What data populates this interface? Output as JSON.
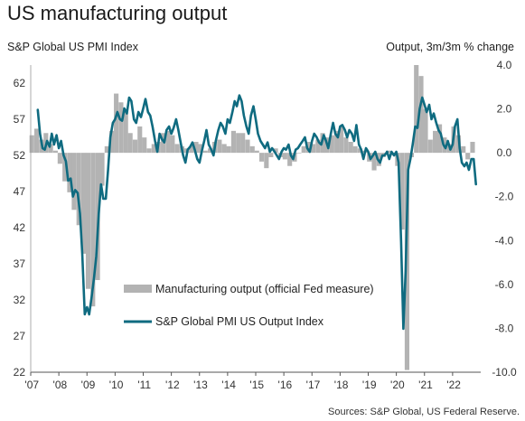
{
  "title": "US manufacturing output",
  "source": "Sources: S&P Global, US Federal Reserve.",
  "chart_data": {
    "type": "bar+line",
    "left_axis_label": "S&P Global US PMI Index",
    "right_axis_label": "Output, 3m/3m % change",
    "left_ylim": [
      22,
      64.5
    ],
    "left_ticks": [
      22,
      27,
      32,
      37,
      42,
      47,
      52,
      57,
      62
    ],
    "right_ylim": [
      -10,
      4
    ],
    "right_ticks": [
      "4.0",
      "2.0",
      "0.0",
      "-2.0",
      "-4.0",
      "-6.0",
      "-8.0",
      "-10.0"
    ],
    "x_ticks": [
      "'07",
      "'08",
      "'09",
      "'10",
      "'11",
      "'12",
      "'13",
      "'14",
      "'15",
      "'16",
      "'17",
      "'18",
      "'19",
      "'20",
      "'21",
      "'22"
    ],
    "x_start": 2007.0,
    "x_end": 2023.0,
    "legend": [
      {
        "label": "Manufacturing output (official Fed measure)",
        "color": "#b3b3b3"
      },
      {
        "label": "S&P Global PMI US Output Index",
        "color": "#0f6b80"
      }
    ],
    "series": [
      {
        "name": "Manufacturing output (official Fed measure)",
        "type": "bar",
        "color": "#b3b3b3",
        "x": [
          2007.04,
          2007.21,
          2007.38,
          2007.54,
          2007.71,
          2007.88,
          2008.04,
          2008.21,
          2008.38,
          2008.54,
          2008.71,
          2008.88,
          2009.04,
          2009.21,
          2009.38,
          2009.54,
          2009.71,
          2009.88,
          2010.04,
          2010.21,
          2010.38,
          2010.54,
          2010.71,
          2010.88,
          2011.04,
          2011.21,
          2011.38,
          2011.54,
          2011.71,
          2011.88,
          2012.04,
          2012.21,
          2012.38,
          2012.54,
          2012.71,
          2012.88,
          2013.04,
          2013.21,
          2013.38,
          2013.54,
          2013.71,
          2013.88,
          2014.04,
          2014.21,
          2014.38,
          2014.54,
          2014.71,
          2014.88,
          2015.04,
          2015.21,
          2015.38,
          2015.54,
          2015.71,
          2015.88,
          2016.04,
          2016.21,
          2016.38,
          2016.54,
          2016.71,
          2016.88,
          2017.04,
          2017.21,
          2017.38,
          2017.54,
          2017.71,
          2017.88,
          2018.04,
          2018.21,
          2018.38,
          2018.54,
          2018.71,
          2018.88,
          2019.04,
          2019.21,
          2019.38,
          2019.54,
          2019.71,
          2019.88,
          2020.04,
          2020.21,
          2020.38,
          2020.54,
          2020.71,
          2020.88,
          2021.04,
          2021.21,
          2021.38,
          2021.54,
          2021.71,
          2021.88,
          2022.04,
          2022.21,
          2022.38,
          2022.54,
          2022.71
        ],
        "values": [
          0.8,
          1.1,
          0.6,
          0.9,
          0.4,
          0.1,
          -0.5,
          -1.3,
          -1.8,
          -2.6,
          -3.3,
          -4.6,
          -6.2,
          -7.0,
          -5.8,
          -1.5,
          0.3,
          1.0,
          2.7,
          2.3,
          1.9,
          0.9,
          0.6,
          1.2,
          0.7,
          0.2,
          0.4,
          0.5,
          0.9,
          1.0,
          0.8,
          0.4,
          0.3,
          0.2,
          0.3,
          0.5,
          0.4,
          0.1,
          0.2,
          0.5,
          0.6,
          0.4,
          0.3,
          1.0,
          0.9,
          0.9,
          0.6,
          0.3,
          0.1,
          -0.4,
          -0.7,
          -0.2,
          0.2,
          -0.2,
          -0.3,
          -0.6,
          -0.4,
          0.0,
          0.3,
          0.5,
          0.4,
          0.6,
          0.9,
          0.7,
          0.8,
          1.0,
          1.2,
          0.7,
          0.5,
          0.3,
          0.2,
          0.1,
          -0.4,
          -0.8,
          -0.6,
          -0.2,
          0.1,
          -0.1,
          -0.6,
          -3.5,
          -9.9,
          -0.2,
          4.0,
          3.5,
          2.0,
          0.6,
          1.0,
          1.3,
          0.7,
          0.4,
          1.2,
          0.8,
          0.3,
          -0.3,
          0.5
        ]
      },
      {
        "name": "S&P Global PMI US Output Index",
        "type": "line",
        "color": "#0f6b80",
        "x": [
          2007.25,
          2007.33,
          2007.42,
          2007.5,
          2007.58,
          2007.67,
          2007.75,
          2007.83,
          2007.92,
          2008.0,
          2008.08,
          2008.17,
          2008.25,
          2008.33,
          2008.42,
          2008.5,
          2008.58,
          2008.67,
          2008.75,
          2008.83,
          2008.92,
          2009.0,
          2009.08,
          2009.17,
          2009.25,
          2009.33,
          2009.42,
          2009.5,
          2009.58,
          2009.67,
          2009.75,
          2009.83,
          2009.92,
          2010.0,
          2010.08,
          2010.17,
          2010.25,
          2010.33,
          2010.42,
          2010.5,
          2010.58,
          2010.67,
          2010.75,
          2010.83,
          2010.92,
          2011.0,
          2011.08,
          2011.17,
          2011.25,
          2011.33,
          2011.42,
          2011.5,
          2011.58,
          2011.67,
          2011.75,
          2011.83,
          2011.92,
          2012.0,
          2012.08,
          2012.17,
          2012.25,
          2012.33,
          2012.42,
          2012.5,
          2012.58,
          2012.67,
          2012.75,
          2012.83,
          2012.92,
          2013.0,
          2013.08,
          2013.17,
          2013.25,
          2013.33,
          2013.42,
          2013.5,
          2013.58,
          2013.67,
          2013.75,
          2013.83,
          2013.92,
          2014.0,
          2014.08,
          2014.17,
          2014.25,
          2014.33,
          2014.42,
          2014.5,
          2014.58,
          2014.67,
          2014.75,
          2014.83,
          2014.92,
          2015.0,
          2015.08,
          2015.17,
          2015.25,
          2015.33,
          2015.42,
          2015.5,
          2015.58,
          2015.67,
          2015.75,
          2015.83,
          2015.92,
          2016.0,
          2016.08,
          2016.17,
          2016.25,
          2016.33,
          2016.42,
          2016.5,
          2016.58,
          2016.67,
          2016.75,
          2016.83,
          2016.92,
          2017.0,
          2017.08,
          2017.17,
          2017.25,
          2017.33,
          2017.42,
          2017.5,
          2017.58,
          2017.67,
          2017.75,
          2017.83,
          2017.92,
          2018.0,
          2018.08,
          2018.17,
          2018.25,
          2018.33,
          2018.42,
          2018.5,
          2018.58,
          2018.67,
          2018.75,
          2018.83,
          2018.92,
          2019.0,
          2019.08,
          2019.17,
          2019.25,
          2019.33,
          2019.42,
          2019.5,
          2019.58,
          2019.67,
          2019.75,
          2019.83,
          2019.92,
          2020.0,
          2020.08,
          2020.17,
          2020.25,
          2020.33,
          2020.42,
          2020.5,
          2020.58,
          2020.67,
          2020.75,
          2020.83,
          2020.92,
          2021.0,
          2021.08,
          2021.17,
          2021.25,
          2021.33,
          2021.42,
          2021.5,
          2021.58,
          2021.67,
          2021.75,
          2021.83,
          2021.92,
          2022.0,
          2022.08,
          2022.17,
          2022.25,
          2022.33,
          2022.42,
          2022.5,
          2022.58,
          2022.67,
          2022.75,
          2022.83
        ],
        "values": [
          58.3,
          55.0,
          53.0,
          52.8,
          54.0,
          53.2,
          55.0,
          53.5,
          54.8,
          53.0,
          54.0,
          52.0,
          51.2,
          48.5,
          48.8,
          46.3,
          47.2,
          46.8,
          44.0,
          38.5,
          30.0,
          31.0,
          30.0,
          32.5,
          35.0,
          38.0,
          44.0,
          48.0,
          46.0,
          46.0,
          50.0,
          54.5,
          56.5,
          57.0,
          58.0,
          57.0,
          56.8,
          58.5,
          57.8,
          60.0,
          59.5,
          57.0,
          56.5,
          58.0,
          57.3,
          58.5,
          59.8,
          58.0,
          57.5,
          56.0,
          54.0,
          52.5,
          55.0,
          54.2,
          53.8,
          55.5,
          56.0,
          55.0,
          55.8,
          57.0,
          55.5,
          53.8,
          52.0,
          51.0,
          52.8,
          53.2,
          53.8,
          52.8,
          51.5,
          51.0,
          52.5,
          54.0,
          55.5,
          53.5,
          52.8,
          52.0,
          54.0,
          55.5,
          56.5,
          56.0,
          55.0,
          57.0,
          56.5,
          58.0,
          59.5,
          58.8,
          60.3,
          59.5,
          57.5,
          56.0,
          55.0,
          57.5,
          58.8,
          57.0,
          55.0,
          54.0,
          53.5,
          53.0,
          53.8,
          52.5,
          53.0,
          52.5,
          52.0,
          51.5,
          52.5,
          53.0,
          52.8,
          53.5,
          52.0,
          51.5,
          52.8,
          53.0,
          53.5,
          54.0,
          54.5,
          53.0,
          52.5,
          54.0,
          55.0,
          54.5,
          53.8,
          53.5,
          54.8,
          54.0,
          53.0,
          55.0,
          56.5,
          55.0,
          54.5,
          56.0,
          56.2,
          55.5,
          54.5,
          55.5,
          55.0,
          54.0,
          56.2,
          53.5,
          52.8,
          51.5,
          53.0,
          52.5,
          51.5,
          52.0,
          52.5,
          51.5,
          51.0,
          52.0,
          52.0,
          52.5,
          51.5,
          52.5,
          52.0,
          52.5,
          51.0,
          40.0,
          28.0,
          36.0,
          50.0,
          51.5,
          53.5,
          56.0,
          55.8,
          58.5,
          60.0,
          59.0,
          58.0,
          59.0,
          57.0,
          57.8,
          56.5,
          55.5,
          55.0,
          53.5,
          53.0,
          54.0,
          52.8,
          53.5,
          56.0,
          57.0,
          53.0,
          51.0,
          50.5,
          51.0,
          50.0,
          51.5,
          51.5,
          48.0
        ]
      }
    ]
  }
}
